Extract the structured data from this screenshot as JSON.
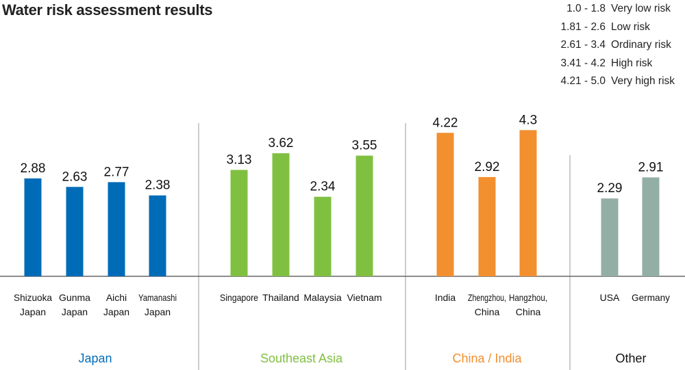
{
  "chart_data": {
    "type": "bar",
    "title": "Water risk assessment results",
    "legend": [
      {
        "range": "1.0 - 1.8",
        "label": "Very low risk"
      },
      {
        "range": "1.81 - 2.6",
        "label": "Low risk"
      },
      {
        "range": "2.61 - 3.4",
        "label": "Ordinary risk"
      },
      {
        "range": "3.41 - 4.2",
        "label": "High risk"
      },
      {
        "range": "4.21 - 5.0",
        "label": "Very high risk"
      }
    ],
    "legend_position": "top-right",
    "ylim": [
      0,
      5
    ],
    "grid": false,
    "groups": [
      {
        "name": "Japan",
        "color": "#006cb7",
        "bars": [
          {
            "label": [
              "Shizuoka",
              "Japan"
            ],
            "value": 2.88
          },
          {
            "label": [
              "Gunma",
              "Japan"
            ],
            "value": 2.63
          },
          {
            "label": [
              "Aichi",
              "Japan"
            ],
            "value": 2.77
          },
          {
            "label": [
              "Yamanashi",
              "Japan"
            ],
            "value": 2.38
          }
        ]
      },
      {
        "name": "Southeast Asia",
        "color": "#80c041",
        "bars": [
          {
            "label": [
              "Singapore"
            ],
            "value": 3.13
          },
          {
            "label": [
              "Thailand"
            ],
            "value": 3.62
          },
          {
            "label": [
              "Malaysia"
            ],
            "value": 2.34
          },
          {
            "label": [
              "Vietnam"
            ],
            "value": 3.55
          }
        ]
      },
      {
        "name": "China / India",
        "color": "#f28f2e",
        "bars": [
          {
            "label": [
              "India"
            ],
            "value": 4.22
          },
          {
            "label": [
              "Zhengzhou,",
              "China"
            ],
            "value": 2.92
          },
          {
            "label": [
              "Hangzhou,",
              "China"
            ],
            "value": 4.3
          }
        ]
      },
      {
        "name": "Other",
        "color": "#93aea5",
        "name_color": "#111111",
        "bars": [
          {
            "label": [
              "USA"
            ],
            "value": 2.29
          },
          {
            "label": [
              "Germany"
            ],
            "value": 2.91
          }
        ]
      }
    ]
  }
}
